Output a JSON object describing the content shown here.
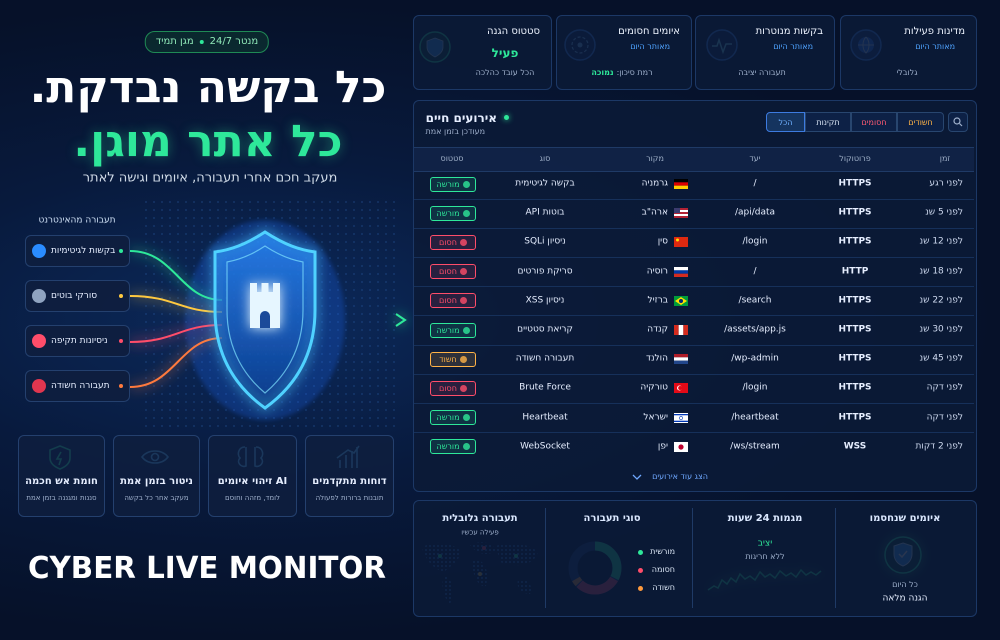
{
  "hero": {
    "badge": [
      "מנטר 24/7",
      "מגן תמיד"
    ],
    "headline_1": "כל בקשה נבדקת.",
    "headline_2": "כל אתר מוגן.",
    "subtitle": "מעקב חכם אחרי תעבורה, איומים וגישה לאתר"
  },
  "traffic_sources": {
    "title": "תעבורה מהאינטרנט",
    "items": [
      "בקשות לגיטימיות",
      "סורקי בוטים",
      "ניסיונות תקיפה",
      "תעבורה חשודה"
    ]
  },
  "features": [
    {
      "title": "חומת אש חכמה",
      "subtitle": "סננות ומגננה בזמן אמת"
    },
    {
      "title": "ניטור בזמן אמת",
      "subtitle": "מעקב אחר כל בקשה"
    },
    {
      "title": "AI זיהוי איומים",
      "subtitle": "לומד, מזהה וחוסם"
    },
    {
      "title": "דוחות מתקדמים",
      "subtitle": "תובנות ברורות לפעולה"
    }
  ],
  "brand": "CYBER LIVE MONITOR",
  "stats": [
    {
      "title": "סטטוס הגנה",
      "value": "פעיל",
      "footer": "הכל עובד כהלכה"
    },
    {
      "title": "איומים חסומים",
      "subtitle": "מאותר היום",
      "footer": "רמת סיכון:",
      "footer_value": "נמוכה"
    },
    {
      "title": "בקשות מנוטרות",
      "subtitle": "מאותר היום",
      "footer": "תעבורה יציבה"
    },
    {
      "title": "מדינות פעילות",
      "subtitle": "מאותר היום",
      "footer": "גלובלי"
    }
  ],
  "events": {
    "title": "אירועים חיים",
    "subtitle": "מעודכן בזמן אמת",
    "filters": [
      "חשודים",
      "חסומים",
      "תקינות",
      "הכל"
    ],
    "columns": [
      "זמן",
      "פרוטוקול",
      "יעד",
      "מקור",
      "סוג",
      "סטטוס"
    ],
    "rows": [
      [
        "לפני רגע",
        "HTTPS",
        "/",
        "גרמניה",
        "בקשה לגיטימית",
        "מורשה"
      ],
      [
        "לפני 5 שנ",
        "HTTPS",
        "/api/data",
        "ארה\"ב",
        "בוטות API",
        "מורשה"
      ],
      [
        "לפני 12 שנ",
        "HTTPS",
        "/login",
        "סין",
        "ניסיון SQLi",
        "חסום"
      ],
      [
        "לפני 18 שנ",
        "HTTP",
        "/",
        "רוסיה",
        "סריקת פורטים",
        "חסום"
      ],
      [
        "לפני 22 שנ",
        "HTTPS",
        "/search",
        "ברזיל",
        "ניסיון XSS",
        "חסום"
      ],
      [
        "לפני 30 שנ",
        "HTTPS",
        "/assets/app.js",
        "קנדה",
        "קריאת סטטיים",
        "מורשה"
      ],
      [
        "לפני 45 שנ",
        "HTTPS",
        "/wp-admin",
        "הולנד",
        "תעבורה חשודה",
        "חשוד"
      ],
      [
        "לפני דקה",
        "HTTPS",
        "/login",
        "טורקיה",
        "Brute Force",
        "חסום"
      ],
      [
        "לפני דקה",
        "HTTPS",
        "/heartbeat",
        "ישראל",
        "Heartbeat",
        "מורשה"
      ],
      [
        "לפני 2 דקות",
        "WSS",
        "/ws/stream",
        "יפן",
        "WebSocket",
        "מורשה"
      ]
    ],
    "more": "הצג עוד אירועים"
  },
  "panels": {
    "global": {
      "title": "תעבורה גלובלית",
      "subtitle": "פעילה עכשיו"
    },
    "types": {
      "title": "סוגי תעבורה",
      "legend": [
        "מורשית",
        "חסומה",
        "חשודה"
      ]
    },
    "trends": {
      "title": "מגמות 24 שעות",
      "status": "יציב",
      "note": "ללא חריגות"
    },
    "blocked": {
      "title": "איומים שנחסמו",
      "period": "כל היום",
      "status": "הגנה מלאה"
    }
  }
}
